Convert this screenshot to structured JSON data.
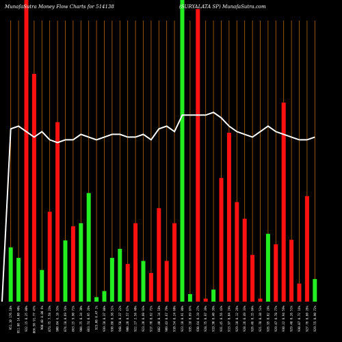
{
  "chart_data": {
    "type": "bar",
    "title_left": "MunafaSutra  Money Flow  Charts for 514138",
    "title_right": "(SURYALATA SP) MunafaSutra.com",
    "ylim": [
      0,
      100
    ],
    "bars": [
      {
        "label": "951.10 176.18%",
        "value": 18,
        "color": "green"
      },
      {
        "label": "951.80 14.00 40%",
        "value": 14.5,
        "color": "green"
      },
      {
        "label": "922.15 8.25 80%",
        "value": 100,
        "color": "red"
      },
      {
        "label": "866.50 91.77 47%",
        "value": 75.5,
        "color": "red"
      },
      {
        "label": "908.40 8.80 6%",
        "value": 10.5,
        "color": "green"
      },
      {
        "label": "873.75 7.58 23%",
        "value": 29.8,
        "color": "red"
      },
      {
        "label": "900.04 6.18 33%",
        "value": 59.5,
        "color": "red"
      },
      {
        "label": "874.18 8.69 54%",
        "value": 20.3,
        "color": "green"
      },
      {
        "label": "863.15 9.90 71%",
        "value": 25,
        "color": "red"
      },
      {
        "label": "904.75 8.34 30%",
        "value": 26,
        "color": "green"
      },
      {
        "label": "863.74 8.95 26%",
        "value": 36,
        "color": "green"
      },
      {
        "label": "923.08 8.47 2%",
        "value": 1.5,
        "color": "green"
      },
      {
        "label": "939.10 8.37 88%",
        "value": 3.5,
        "color": "green"
      },
      {
        "label": "930.88 8.38 52%",
        "value": 14.5,
        "color": "green"
      },
      {
        "label": "948.58 8.37 22%",
        "value": 17.5,
        "color": "green"
      },
      {
        "label": "900.20 8.57 67%",
        "value": 12.5,
        "color": "red"
      },
      {
        "label": "922.17 2.56 40%",
        "value": 26,
        "color": "red"
      },
      {
        "label": "923.20 8.60 93%",
        "value": 13.5,
        "color": "green"
      },
      {
        "label": "917.70 8.92 72%",
        "value": 9.5,
        "color": "red"
      },
      {
        "label": "882.40 8.14 18%",
        "value": 31,
        "color": "red"
      },
      {
        "label": "909.43 8.67 79%",
        "value": 13.5,
        "color": "red"
      },
      {
        "label": "910.54 8.24 60%",
        "value": 26,
        "color": "red"
      },
      {
        "label": "923.10 8.91 80%",
        "value": 100,
        "color": "green"
      },
      {
        "label": "935.18 8.69 87%",
        "value": 2.5,
        "color": "green"
      },
      {
        "label": "930.64 8.19 27%",
        "value": 97,
        "color": "red"
      },
      {
        "label": "928.75 8.97 39%",
        "value": 1,
        "color": "red"
      },
      {
        "label": "919.30 8.40 39%",
        "value": 4,
        "color": "green"
      },
      {
        "label": "931.45 8.56 43%",
        "value": 41,
        "color": "red"
      },
      {
        "label": "913.97 8.84 24%",
        "value": 56,
        "color": "red"
      },
      {
        "label": "929.10 8.12 26%",
        "value": 33,
        "color": "red"
      },
      {
        "label": "928.26 8.49 33%",
        "value": 27.5,
        "color": "red"
      },
      {
        "label": "926.46 8.15 84%",
        "value": 15.5,
        "color": "red"
      },
      {
        "label": "921.78 8.38 52%",
        "value": 1,
        "color": "red"
      },
      {
        "label": "926.95 8.82 24%",
        "value": 22.5,
        "color": "green"
      },
      {
        "label": "929.47 8.78 77%",
        "value": 19,
        "color": "red"
      },
      {
        "label": "930.22 8.94 59%",
        "value": 66,
        "color": "red"
      },
      {
        "label": "929.48 8.26 51%",
        "value": 20.5,
        "color": "red"
      },
      {
        "label": "930.87 8.72 16%",
        "value": 6,
        "color": "red"
      },
      {
        "label": "927.76 8.60 26%",
        "value": 35,
        "color": "red"
      },
      {
        "label": "929.55 8.90 72%",
        "value": 7.5,
        "color": "green"
      }
    ],
    "price_line": [
      0,
      63,
      64,
      62,
      60,
      62,
      59,
      58,
      59,
      59,
      61,
      60,
      59,
      60,
      61,
      61,
      60,
      60,
      61,
      59,
      63,
      64,
      62,
      68,
      68,
      68,
      68,
      69,
      67,
      64,
      62,
      61,
      60,
      62,
      64,
      62,
      61,
      60,
      59,
      59,
      60
    ],
    "colors": {
      "green": "#22ee22",
      "red": "#ff1111",
      "grid": "#b8660b",
      "line": "#ffffff",
      "background": "#000000"
    }
  }
}
